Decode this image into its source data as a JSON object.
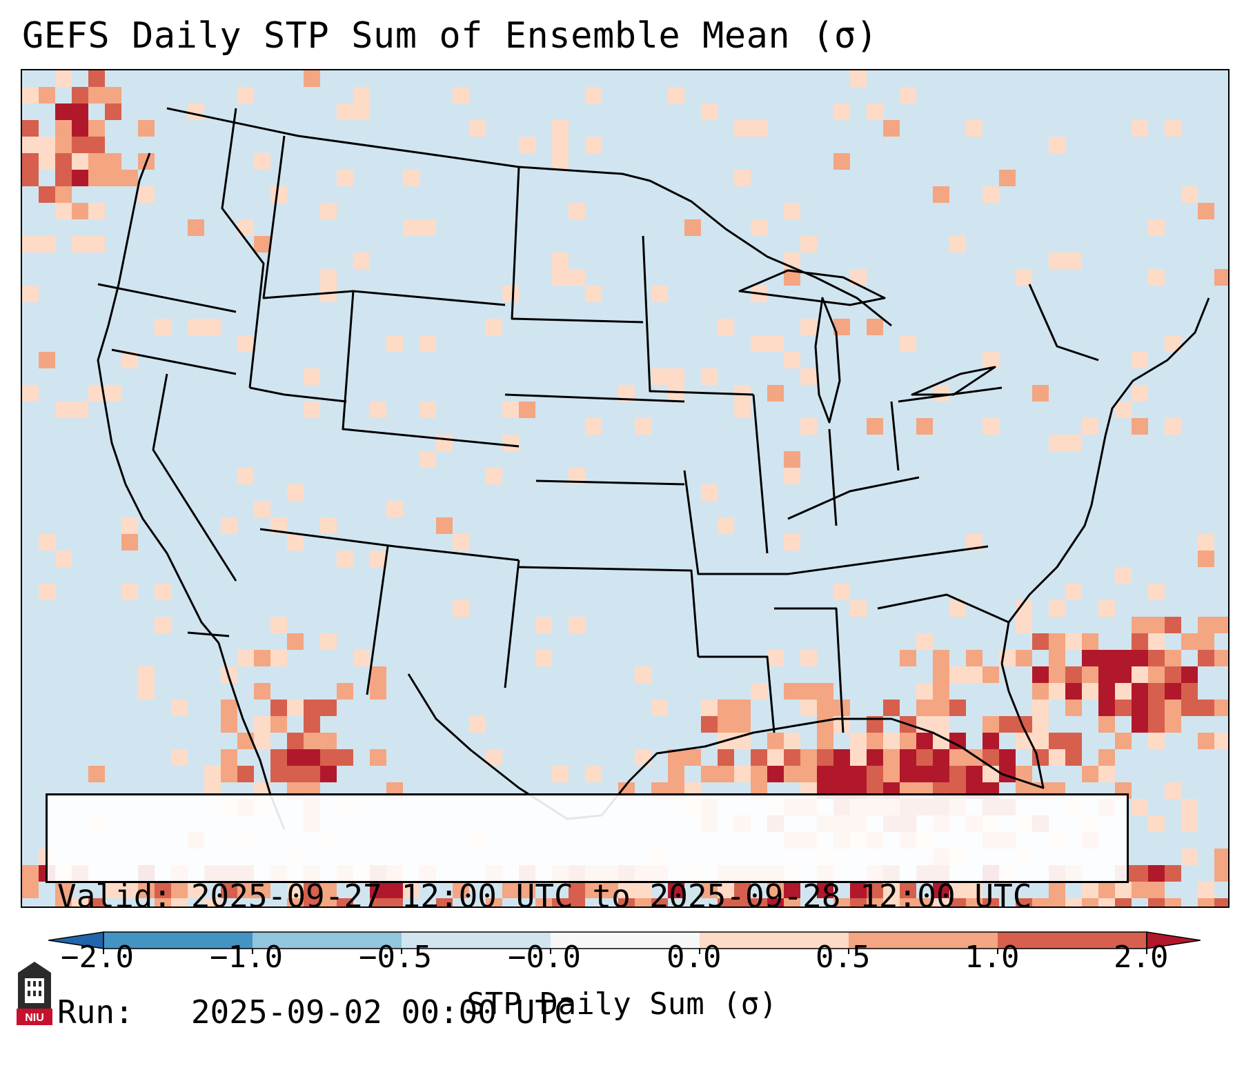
{
  "title": "GEFS Daily STP Sum of Ensemble Mean (σ)",
  "info_box": {
    "valid_line": "Valid: 2025-09-27 12:00 UTC to 2025-09-28 12:00 UTC",
    "run_line": "Run:   2025-09-02 00:00 UTC"
  },
  "colorbar": {
    "label": "STP Daily Sum (σ)",
    "ticks": [
      "−2.0",
      "−1.0",
      "−0.5",
      "−0.0",
      "0.0",
      "0.5",
      "1.0",
      "2.0"
    ],
    "bins": [
      {
        "range": "< -2.0",
        "color": "#2166ac"
      },
      {
        "range": "-2.0 to -1.0",
        "color": "#4393c3"
      },
      {
        "range": "-1.0 to -0.5",
        "color": "#92c5de"
      },
      {
        "range": "-0.5 to 0.0",
        "color": "#d1e5f0"
      },
      {
        "range": "0.0",
        "color": "#f7f7f7"
      },
      {
        "range": "0.0 to 0.5",
        "color": "#fddbc7"
      },
      {
        "range": "0.5 to 1.0",
        "color": "#f4a582"
      },
      {
        "range": "1.0 to 2.0",
        "color": "#d6604d"
      },
      {
        "range": "> 2.0",
        "color": "#b2182b"
      }
    ]
  },
  "logo_text": "NIU"
}
